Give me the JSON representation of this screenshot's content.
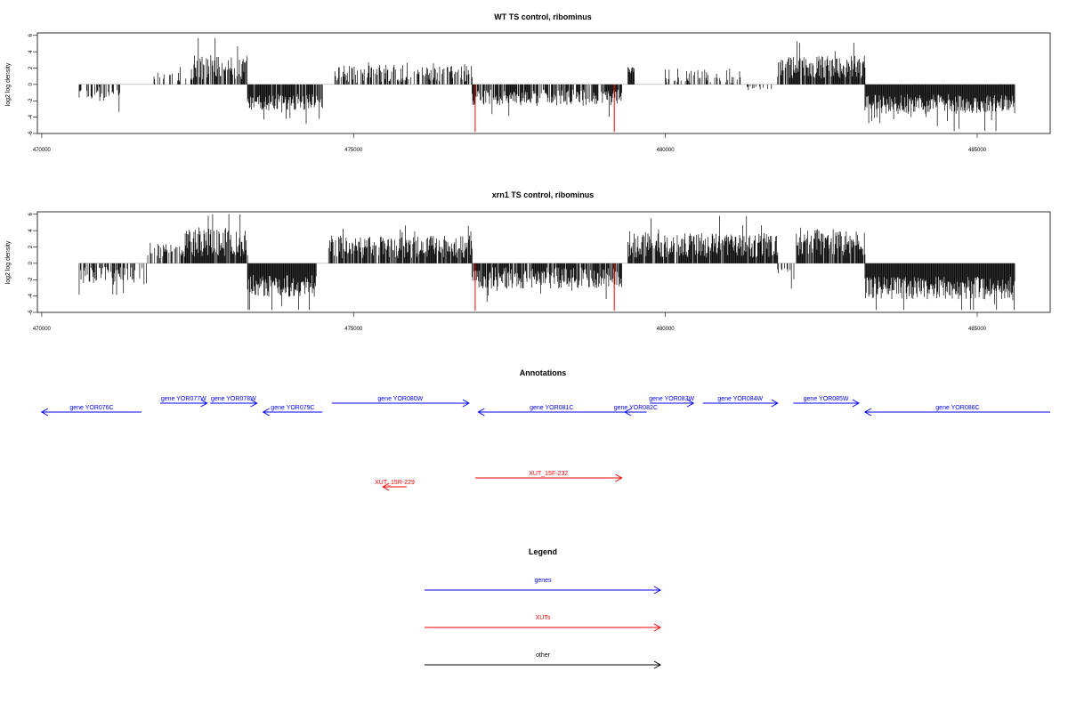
{
  "chart_data": [
    {
      "type": "bar",
      "title": "WT TS control, ribominus",
      "xlabel": "",
      "ylabel": "log2 log density",
      "xlim": [
        469930,
        486170
      ],
      "ylim": [
        -6,
        6.3
      ],
      "xticks": [
        470000,
        475000,
        480000,
        485000
      ],
      "yticks": [
        6,
        4,
        2,
        0,
        -2,
        -4,
        -6
      ],
      "grid": false,
      "segments": [
        {
          "from": 470600,
          "to": 471300,
          "level": -1.2,
          "amp": 0.9,
          "density": 0.35,
          "seed": 11
        },
        {
          "from": 471800,
          "to": 472400,
          "level": 0.8,
          "amp": 0.7,
          "density": 0.25,
          "seed": 12
        },
        {
          "from": 472400,
          "to": 473300,
          "level": 2.0,
          "amp": 1.6,
          "density": 0.8,
          "seed": 13
        },
        {
          "from": 473300,
          "to": 474500,
          "level": -2.2,
          "amp": 1.0,
          "density": 0.85,
          "seed": 14
        },
        {
          "from": 474700,
          "to": 476900,
          "level": 1.3,
          "amp": 1.1,
          "density": 0.55,
          "seed": 15
        },
        {
          "from": 476900,
          "to": 479300,
          "level": -1.6,
          "amp": 1.0,
          "density": 0.75,
          "seed": 16
        },
        {
          "from": 479400,
          "to": 479500,
          "level": 1.8,
          "amp": 0.5,
          "density": 1.0,
          "seed": 17
        },
        {
          "from": 480000,
          "to": 481200,
          "level": 1.0,
          "amp": 1.0,
          "density": 0.35,
          "seed": 18
        },
        {
          "from": 481300,
          "to": 481700,
          "level": -0.5,
          "amp": 0.3,
          "density": 0.2,
          "seed": 19
        },
        {
          "from": 481800,
          "to": 483200,
          "level": 2.1,
          "amp": 1.4,
          "density": 0.9,
          "seed": 20
        },
        {
          "from": 483200,
          "to": 485600,
          "level": -2.4,
          "amp": 1.2,
          "density": 1.0,
          "seed": 21
        }
      ],
      "highlights": [
        {
          "x": 476950,
          "y": -5.8
        },
        {
          "x": 479180,
          "y": -5.8
        }
      ]
    },
    {
      "type": "bar",
      "title": "xrn1 TS control, ribominus",
      "xlabel": "",
      "ylabel": "log2 log density",
      "xlim": [
        469930,
        486170
      ],
      "ylim": [
        -6,
        6.3
      ],
      "xticks": [
        470000,
        475000,
        480000,
        485000
      ],
      "yticks": [
        6,
        4,
        2,
        0,
        -2,
        -4,
        -6
      ],
      "grid": false,
      "segments": [
        {
          "from": 470600,
          "to": 471700,
          "level": -1.5,
          "amp": 1.1,
          "density": 0.5,
          "seed": 31
        },
        {
          "from": 471700,
          "to": 472300,
          "level": 1.6,
          "amp": 1.0,
          "density": 0.5,
          "seed": 32
        },
        {
          "from": 472300,
          "to": 473300,
          "level": 2.6,
          "amp": 1.8,
          "density": 0.9,
          "seed": 33
        },
        {
          "from": 473300,
          "to": 474400,
          "level": -2.8,
          "amp": 1.4,
          "density": 1.0,
          "seed": 34
        },
        {
          "from": 474600,
          "to": 476900,
          "level": 2.0,
          "amp": 1.4,
          "density": 0.85,
          "seed": 35
        },
        {
          "from": 476900,
          "to": 479300,
          "level": -1.8,
          "amp": 1.3,
          "density": 0.85,
          "seed": 36
        },
        {
          "from": 479400,
          "to": 481800,
          "level": 2.2,
          "amp": 1.5,
          "density": 0.9,
          "seed": 37
        },
        {
          "from": 481800,
          "to": 482100,
          "level": -1.2,
          "amp": 1.0,
          "density": 0.4,
          "seed": 38
        },
        {
          "from": 482100,
          "to": 483200,
          "level": 2.6,
          "amp": 1.6,
          "density": 0.9,
          "seed": 39
        },
        {
          "from": 483200,
          "to": 485600,
          "level": -3.0,
          "amp": 1.4,
          "density": 1.0,
          "seed": 40
        }
      ],
      "highlights": [
        {
          "x": 476950,
          "y": -5.8
        },
        {
          "x": 479180,
          "y": -5.8
        }
      ]
    }
  ],
  "annotations": {
    "title": "Annotations",
    "genes": [
      {
        "label": "gene YOR076C",
        "start": 470000,
        "end": 471600,
        "strand": "-",
        "row": 2
      },
      {
        "label": "gene YOR077W",
        "start": 471900,
        "end": 472650,
        "strand": "+",
        "row": 1
      },
      {
        "label": "gene YOR078W",
        "start": 472700,
        "end": 473450,
        "strand": "+",
        "row": 1
      },
      {
        "label": "gene YOR079C",
        "start": 473550,
        "end": 474500,
        "strand": "-",
        "row": 2
      },
      {
        "label": "gene YOR080W",
        "start": 474650,
        "end": 476850,
        "strand": "+",
        "row": 1
      },
      {
        "label": "gene YOR081C",
        "start": 477000,
        "end": 479350,
        "strand": "-",
        "row": 2
      },
      {
        "label": "gene YOR082C",
        "start": 479350,
        "end": 479700,
        "strand": "-",
        "row": 2
      },
      {
        "label": "gene YOR083W",
        "start": 479750,
        "end": 480450,
        "strand": "+",
        "row": 1
      },
      {
        "label": "gene YOR084W",
        "start": 480600,
        "end": 481800,
        "strand": "+",
        "row": 1
      },
      {
        "label": "gene YOR085W",
        "start": 482050,
        "end": 483100,
        "strand": "+",
        "row": 1
      },
      {
        "label": "gene YOR086C",
        "start": 483200,
        "end": 486170,
        "strand": "-",
        "row": 2
      }
    ],
    "xuts": [
      {
        "label": "XUT_15F-232",
        "start": 476950,
        "end": 479300,
        "strand": "+",
        "row": 1
      },
      {
        "label": "XUT_15R-229",
        "start": 475470,
        "end": 475850,
        "strand": "-",
        "row": 2
      }
    ]
  },
  "legend": {
    "title": "Legend",
    "items": [
      {
        "label": "genes",
        "color": "#0000ff"
      },
      {
        "label": "XUTs",
        "color": "#ff0000"
      },
      {
        "label": "other",
        "color": "#000000"
      }
    ]
  },
  "colors": {
    "signal": "#000000",
    "highlight": "#ff0000",
    "genes": "#0000ff",
    "xuts": "#ff0000",
    "axis": "#000000"
  }
}
